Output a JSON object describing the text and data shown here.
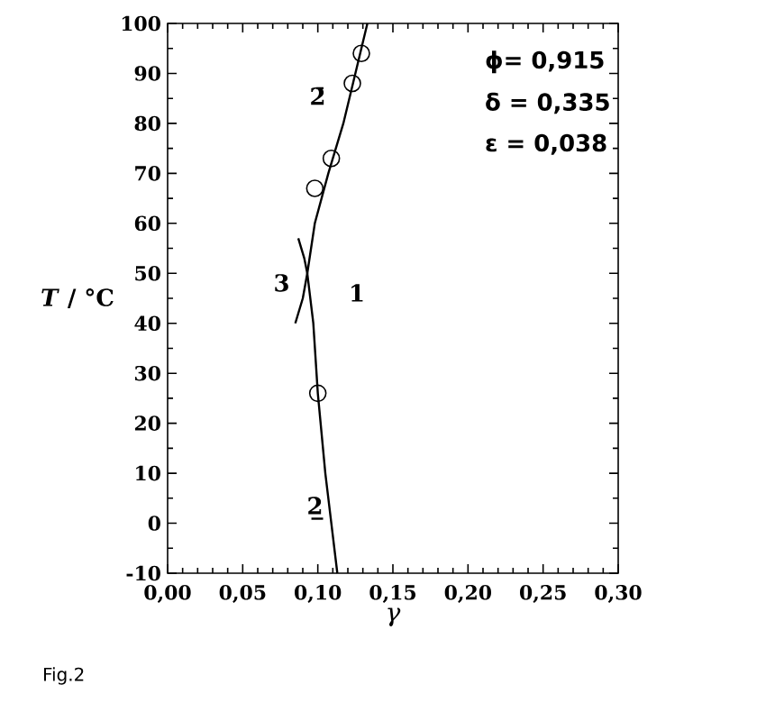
{
  "chart_data": {
    "type": "line",
    "xlabel": "*γ*",
    "ylabel": "*T* / °C",
    "xlim": [
      0,
      0.3
    ],
    "ylim": [
      -10,
      100
    ],
    "xticks": [
      {
        "value": 0,
        "label": "0,00"
      },
      {
        "value": 0.05,
        "label": "0,05"
      },
      {
        "value": 0.1,
        "label": "0,10"
      },
      {
        "value": 0.15,
        "label": "0,15"
      },
      {
        "value": 0.2,
        "label": "0,20"
      },
      {
        "value": 0.25,
        "label": "0,25"
      },
      {
        "value": 0.3,
        "label": "0,30"
      }
    ],
    "yticks": [
      -10,
      0,
      10,
      20,
      30,
      40,
      50,
      60,
      70,
      80,
      90,
      100
    ],
    "grid": false,
    "marker": "none",
    "line_style": "solid",
    "series": [
      {
        "color": "#000000",
        "x": [
          0.133,
          0.117,
          0.107,
          0.098,
          0.093,
          0.097,
          0.1,
          0.105,
          0.109,
          0.113
        ],
        "values": [
          100,
          80,
          70,
          60,
          50,
          40,
          26,
          10,
          0,
          -10
        ]
      },
      {
        "color": "#000000",
        "x": [
          0.087,
          0.091,
          0.093,
          0.09,
          0.085
        ],
        "values": [
          57,
          53,
          50,
          45,
          40
        ]
      },
      {
        "type": "scatter",
        "marker": "circle",
        "color": "#000000",
        "x": [
          0.129,
          0.123,
          0.109,
          0.098,
          0.1
        ],
        "values": [
          94,
          88,
          73,
          67,
          26
        ]
      }
    ],
    "annotations": [
      "2̄",
      "3",
      "1",
      "2̲",
      "ϕ=  0,915",
      "δ =  0,335",
      "ε =  0,038",
      "Fig.2"
    ]
  }
}
